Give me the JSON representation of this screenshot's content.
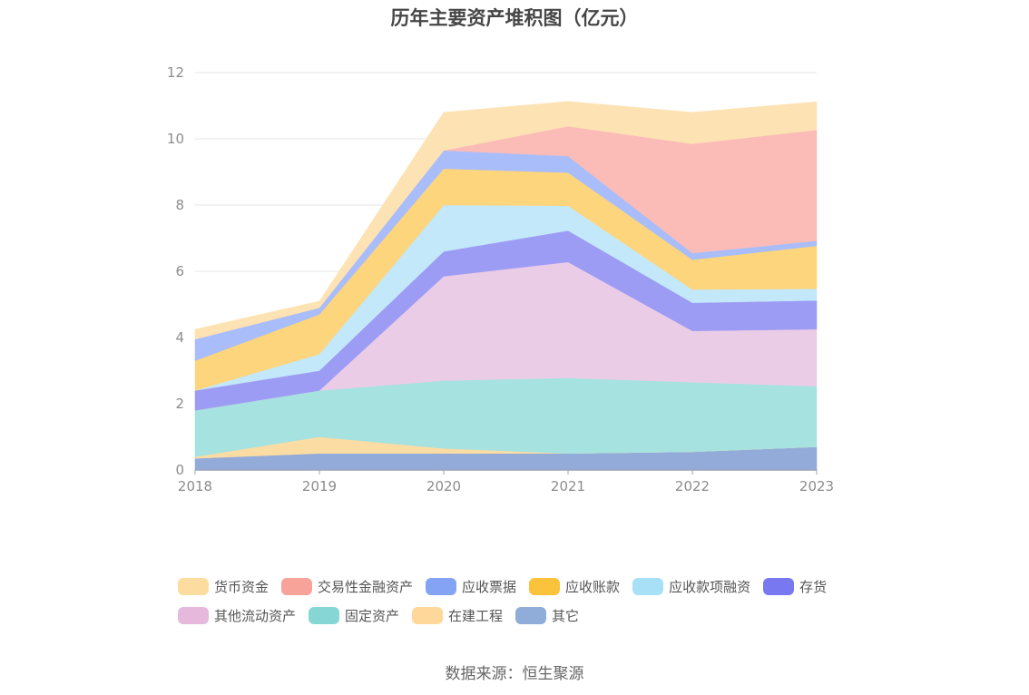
{
  "chart_data": {
    "type": "area",
    "title": "历年主要资产堆积图（亿元）",
    "categories": [
      "2018",
      "2019",
      "2020",
      "2021",
      "2022",
      "2023"
    ],
    "ylim": [
      0,
      12
    ],
    "yticks": [
      0,
      2,
      4,
      6,
      8,
      10,
      12
    ],
    "grid": true,
    "legend_position": "bottom",
    "series": [
      {
        "name": "其它",
        "color": "#93abd8",
        "values": [
          0.35,
          0.5,
          0.5,
          0.5,
          0.55,
          0.7
        ]
      },
      {
        "name": "在建工程",
        "color": "#fbdca3",
        "values": [
          0.05,
          0.5,
          0.15,
          0.0,
          0.0,
          0.0
        ]
      },
      {
        "name": "固定资产",
        "color": "#a6e2e0",
        "values": [
          1.4,
          1.4,
          2.05,
          2.28,
          2.1,
          1.83
        ]
      },
      {
        "name": "其他流动资产",
        "color": "#ebcce6",
        "values": [
          0.0,
          0.0,
          3.15,
          3.5,
          1.55,
          1.72
        ]
      },
      {
        "name": "存货",
        "color": "#9d9cf4",
        "values": [
          0.6,
          0.6,
          0.75,
          0.95,
          0.85,
          0.87
        ]
      },
      {
        "name": "应收款项融资",
        "color": "#c3e8fa",
        "values": [
          0.0,
          0.5,
          1.4,
          0.75,
          0.4,
          0.35
        ]
      },
      {
        "name": "应收账款",
        "color": "#fdd57c",
        "values": [
          0.9,
          1.2,
          1.1,
          1.0,
          0.9,
          1.3
        ]
      },
      {
        "name": "应收票据",
        "color": "#a9bdfa",
        "values": [
          0.65,
          0.2,
          0.55,
          0.5,
          0.2,
          0.15
        ]
      },
      {
        "name": "交易性金融资产",
        "color": "#fbbcb7",
        "values": [
          0.0,
          0.0,
          0.0,
          0.9,
          3.3,
          3.35
        ]
      },
      {
        "name": "货币资金",
        "color": "#fde3b4",
        "values": [
          0.3,
          0.2,
          1.15,
          0.75,
          0.95,
          0.85
        ]
      }
    ]
  },
  "legend_items": [
    {
      "name": "货币资金",
      "color": "#fddd9f"
    },
    {
      "name": "交易性金融资产",
      "color": "#f8a399"
    },
    {
      "name": "应收票据",
      "color": "#85a3f5"
    },
    {
      "name": "应收账款",
      "color": "#fbc23c"
    },
    {
      "name": "应收款项融资",
      "color": "#a8e0f8"
    },
    {
      "name": "存货",
      "color": "#7878f0"
    },
    {
      "name": "其他流动资产",
      "color": "#e5b8dc"
    },
    {
      "name": "固定资产",
      "color": "#86d6d6"
    },
    {
      "name": "在建工程",
      "color": "#fdd89a"
    },
    {
      "name": "其它",
      "color": "#8fadd8"
    }
  ],
  "source": "数据来源：恒生聚源"
}
